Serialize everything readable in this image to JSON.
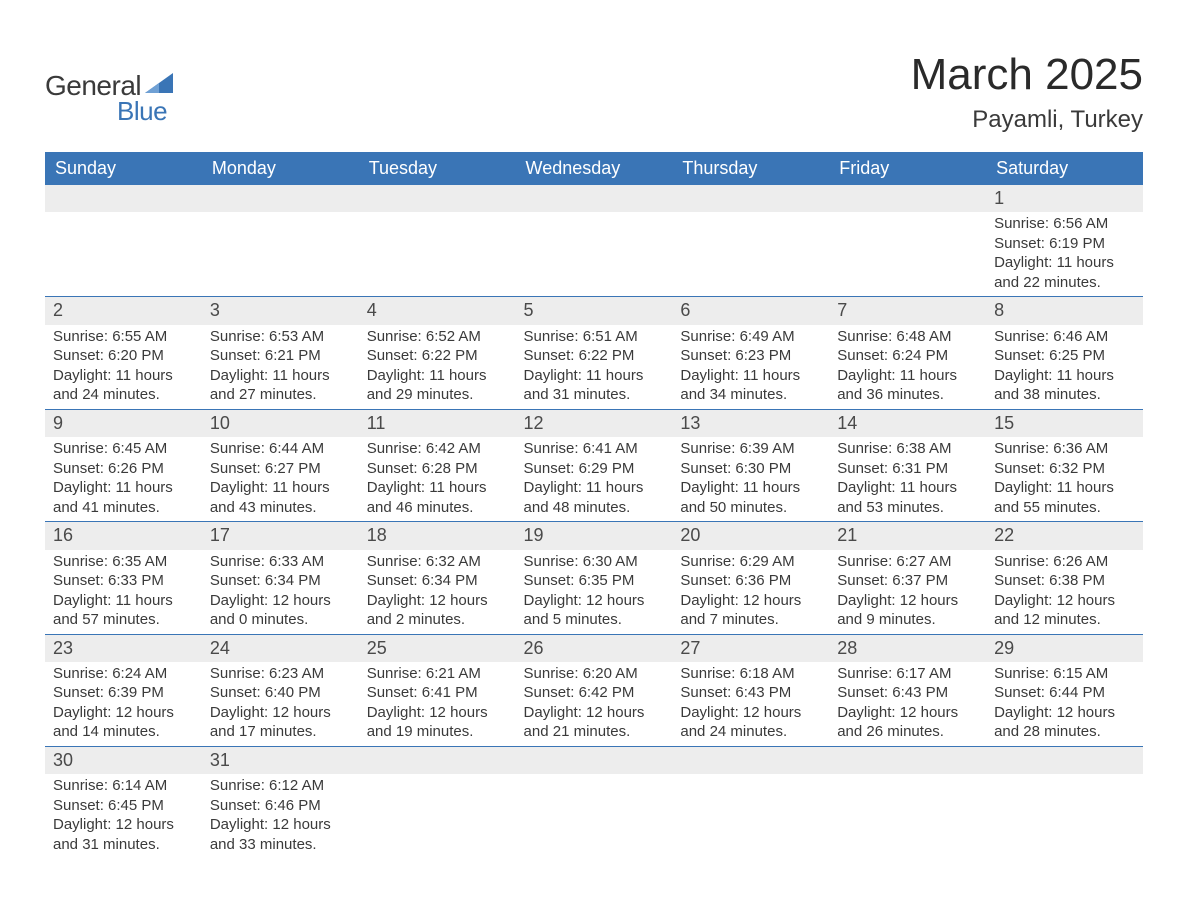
{
  "logo": {
    "text1": "General",
    "text2": "Blue",
    "tri_color": "#3a75b6"
  },
  "title": "March 2025",
  "location": "Payamli, Turkey",
  "header_bg": "#3a75b6",
  "daynum_bg": "#ededed",
  "divider_color": "#3a75b6",
  "days_of_week": [
    "Sunday",
    "Monday",
    "Tuesday",
    "Wednesday",
    "Thursday",
    "Friday",
    "Saturday"
  ],
  "weeks": [
    [
      null,
      null,
      null,
      null,
      null,
      null,
      {
        "n": "1",
        "sr": "6:56 AM",
        "ss": "6:19 PM",
        "dl": "11 hours and 22 minutes."
      }
    ],
    [
      {
        "n": "2",
        "sr": "6:55 AM",
        "ss": "6:20 PM",
        "dl": "11 hours and 24 minutes."
      },
      {
        "n": "3",
        "sr": "6:53 AM",
        "ss": "6:21 PM",
        "dl": "11 hours and 27 minutes."
      },
      {
        "n": "4",
        "sr": "6:52 AM",
        "ss": "6:22 PM",
        "dl": "11 hours and 29 minutes."
      },
      {
        "n": "5",
        "sr": "6:51 AM",
        "ss": "6:22 PM",
        "dl": "11 hours and 31 minutes."
      },
      {
        "n": "6",
        "sr": "6:49 AM",
        "ss": "6:23 PM",
        "dl": "11 hours and 34 minutes."
      },
      {
        "n": "7",
        "sr": "6:48 AM",
        "ss": "6:24 PM",
        "dl": "11 hours and 36 minutes."
      },
      {
        "n": "8",
        "sr": "6:46 AM",
        "ss": "6:25 PM",
        "dl": "11 hours and 38 minutes."
      }
    ],
    [
      {
        "n": "9",
        "sr": "6:45 AM",
        "ss": "6:26 PM",
        "dl": "11 hours and 41 minutes."
      },
      {
        "n": "10",
        "sr": "6:44 AM",
        "ss": "6:27 PM",
        "dl": "11 hours and 43 minutes."
      },
      {
        "n": "11",
        "sr": "6:42 AM",
        "ss": "6:28 PM",
        "dl": "11 hours and 46 minutes."
      },
      {
        "n": "12",
        "sr": "6:41 AM",
        "ss": "6:29 PM",
        "dl": "11 hours and 48 minutes."
      },
      {
        "n": "13",
        "sr": "6:39 AM",
        "ss": "6:30 PM",
        "dl": "11 hours and 50 minutes."
      },
      {
        "n": "14",
        "sr": "6:38 AM",
        "ss": "6:31 PM",
        "dl": "11 hours and 53 minutes."
      },
      {
        "n": "15",
        "sr": "6:36 AM",
        "ss": "6:32 PM",
        "dl": "11 hours and 55 minutes."
      }
    ],
    [
      {
        "n": "16",
        "sr": "6:35 AM",
        "ss": "6:33 PM",
        "dl": "11 hours and 57 minutes."
      },
      {
        "n": "17",
        "sr": "6:33 AM",
        "ss": "6:34 PM",
        "dl": "12 hours and 0 minutes."
      },
      {
        "n": "18",
        "sr": "6:32 AM",
        "ss": "6:34 PM",
        "dl": "12 hours and 2 minutes."
      },
      {
        "n": "19",
        "sr": "6:30 AM",
        "ss": "6:35 PM",
        "dl": "12 hours and 5 minutes."
      },
      {
        "n": "20",
        "sr": "6:29 AM",
        "ss": "6:36 PM",
        "dl": "12 hours and 7 minutes."
      },
      {
        "n": "21",
        "sr": "6:27 AM",
        "ss": "6:37 PM",
        "dl": "12 hours and 9 minutes."
      },
      {
        "n": "22",
        "sr": "6:26 AM",
        "ss": "6:38 PM",
        "dl": "12 hours and 12 minutes."
      }
    ],
    [
      {
        "n": "23",
        "sr": "6:24 AM",
        "ss": "6:39 PM",
        "dl": "12 hours and 14 minutes."
      },
      {
        "n": "24",
        "sr": "6:23 AM",
        "ss": "6:40 PM",
        "dl": "12 hours and 17 minutes."
      },
      {
        "n": "25",
        "sr": "6:21 AM",
        "ss": "6:41 PM",
        "dl": "12 hours and 19 minutes."
      },
      {
        "n": "26",
        "sr": "6:20 AM",
        "ss": "6:42 PM",
        "dl": "12 hours and 21 minutes."
      },
      {
        "n": "27",
        "sr": "6:18 AM",
        "ss": "6:43 PM",
        "dl": "12 hours and 24 minutes."
      },
      {
        "n": "28",
        "sr": "6:17 AM",
        "ss": "6:43 PM",
        "dl": "12 hours and 26 minutes."
      },
      {
        "n": "29",
        "sr": "6:15 AM",
        "ss": "6:44 PM",
        "dl": "12 hours and 28 minutes."
      }
    ],
    [
      {
        "n": "30",
        "sr": "6:14 AM",
        "ss": "6:45 PM",
        "dl": "12 hours and 31 minutes."
      },
      {
        "n": "31",
        "sr": "6:12 AM",
        "ss": "6:46 PM",
        "dl": "12 hours and 33 minutes."
      },
      null,
      null,
      null,
      null,
      null
    ]
  ],
  "labels": {
    "sunrise": "Sunrise: ",
    "sunset": "Sunset: ",
    "daylight": "Daylight: "
  }
}
